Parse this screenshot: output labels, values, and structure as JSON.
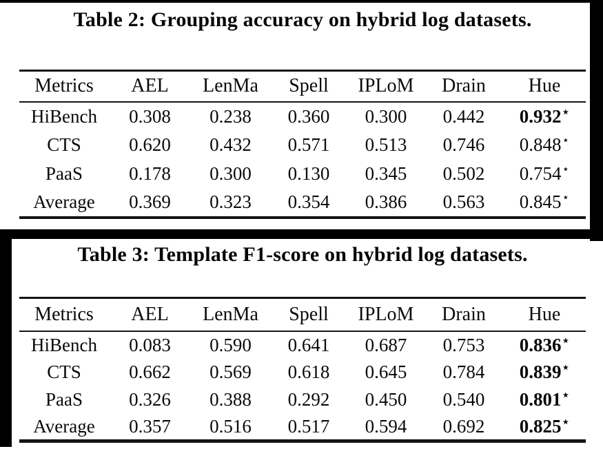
{
  "colors": {
    "ink": "#0a0a0a",
    "background": "#ffffff",
    "frame": "#000000"
  },
  "star_glyph": "⋆",
  "tables": [
    {
      "title": "Table 2: Grouping accuracy on hybrid log datasets.",
      "columns": [
        "Metrics",
        "AEL",
        "LenMa",
        "Spell",
        "IPLoM",
        "Drain",
        "Hue"
      ],
      "rows": [
        {
          "metric": "HiBench",
          "values": [
            "0.308",
            "0.238",
            "0.360",
            "0.300",
            "0.442"
          ],
          "hue": "0.932",
          "hue_star": true,
          "hue_bold": true
        },
        {
          "metric": "CTS",
          "values": [
            "0.620",
            "0.432",
            "0.571",
            "0.513",
            "0.746"
          ],
          "hue": "0.848",
          "hue_star": true,
          "hue_bold": false
        },
        {
          "metric": "PaaS",
          "values": [
            "0.178",
            "0.300",
            "0.130",
            "0.345",
            "0.502"
          ],
          "hue": "0.754",
          "hue_star": true,
          "hue_bold": false
        },
        {
          "metric": "Average",
          "values": [
            "0.369",
            "0.323",
            "0.354",
            "0.386",
            "0.563"
          ],
          "hue": "0.845",
          "hue_star": true,
          "hue_bold": false
        }
      ]
    },
    {
      "title": "Table 3: Template F1-score on hybrid log datasets.",
      "columns": [
        "Metrics",
        "AEL",
        "LenMa",
        "Spell",
        "IPLoM",
        "Drain",
        "Hue"
      ],
      "rows": [
        {
          "metric": "HiBench",
          "values": [
            "0.083",
            "0.590",
            "0.641",
            "0.687",
            "0.753"
          ],
          "hue": "0.836",
          "hue_star": true,
          "hue_bold": true
        },
        {
          "metric": "CTS",
          "values": [
            "0.662",
            "0.569",
            "0.618",
            "0.645",
            "0.784"
          ],
          "hue": "0.839",
          "hue_star": true,
          "hue_bold": true
        },
        {
          "metric": "PaaS",
          "values": [
            "0.326",
            "0.388",
            "0.292",
            "0.450",
            "0.540"
          ],
          "hue": "0.801",
          "hue_star": true,
          "hue_bold": true
        },
        {
          "metric": "Average",
          "values": [
            "0.357",
            "0.516",
            "0.517",
            "0.594",
            "0.692"
          ],
          "hue": "0.825",
          "hue_star": true,
          "hue_bold": true
        }
      ]
    }
  ]
}
